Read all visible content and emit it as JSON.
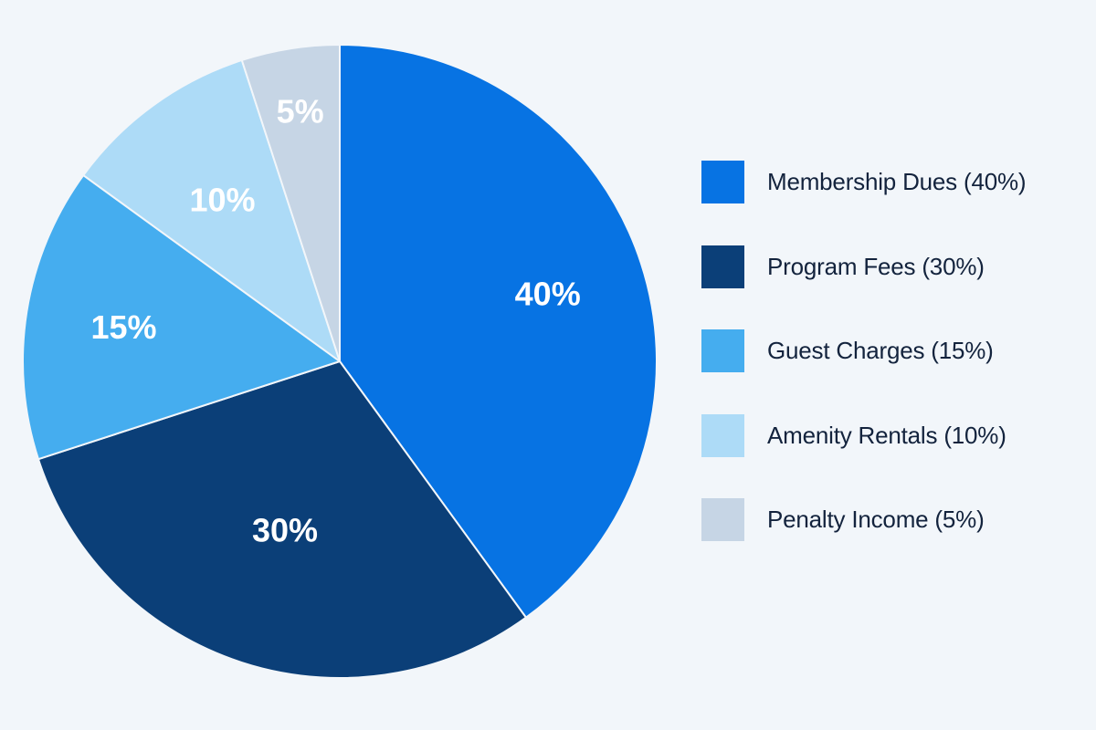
{
  "chart_data": {
    "type": "pie",
    "title": "",
    "slices": [
      {
        "name": "Membership Dues",
        "value": 40,
        "label": "40%",
        "legend": "Membership Dues (40%)",
        "color": "#0773e3"
      },
      {
        "name": "Program Fees",
        "value": 30,
        "label": "30%",
        "legend": "Program Fees (30%)",
        "color": "#0b3f78"
      },
      {
        "name": "Guest Charges",
        "value": 15,
        "label": "15%",
        "legend": "Guest Charges (15%)",
        "color": "#45adef"
      },
      {
        "name": "Amenity Rentals",
        "value": 10,
        "label": "10%",
        "legend": "Amenity Rentals (10%)",
        "color": "#addbf7"
      },
      {
        "name": "Penalty Income",
        "value": 5,
        "label": "5%",
        "legend": "Penalty Income (5%)",
        "color": "#c6d5e5"
      }
    ],
    "start_angle": "12 o'clock",
    "direction": "clockwise",
    "legend_position": "right"
  }
}
